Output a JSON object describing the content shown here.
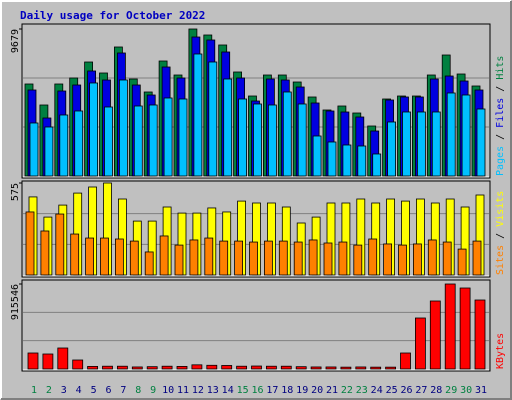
{
  "chart_data": [
    {
      "type": "bar",
      "title": "Daily usage for October 2022",
      "ylim": [
        0,
        9679
      ],
      "yticks": [
        9679
      ],
      "legend_separator": "/",
      "series": [
        {
          "name": "Hits",
          "color": "#008040",
          "values": [
            6058,
            4675,
            6058,
            6453,
            7506,
            6782,
            8494,
            6387,
            5531,
            7572,
            6650,
            9679,
            9284,
            8626,
            6848,
            5267,
            6650,
            6650,
            6189,
            5202,
            4346,
            4609,
            4148,
            3292,
            5070,
            5267,
            5267,
            6650,
            7967,
            6716,
            5926
          ]
        },
        {
          "name": "Files",
          "color": "#0000e0",
          "values": [
            5663,
            3819,
            5597,
            5992,
            6914,
            6321,
            8099,
            5992,
            5333,
            7177,
            6453,
            9152,
            8955,
            8165,
            6453,
            4938,
            6387,
            6321,
            5860,
            4807,
            4280,
            4214,
            3885,
            2963,
            5004,
            5202,
            5202,
            6387,
            6584,
            6255,
            5663
          ]
        },
        {
          "name": "Pages",
          "color": "#00c0ff",
          "values": [
            3490,
            3226,
            4017,
            4280,
            6124,
            4543,
            6321,
            4609,
            4675,
            5136,
            5070,
            8033,
            7506,
            6387,
            5070,
            4741,
            4675,
            5531,
            4741,
            2634,
            2239,
            2041,
            1975,
            1449,
            3556,
            4214,
            4214,
            4214,
            5465,
            5333,
            4412
          ]
        }
      ]
    },
    {
      "type": "bar",
      "ylim": [
        0,
        575
      ],
      "yticks": [
        575
      ],
      "legend_separator": "/",
      "series": [
        {
          "name": "Visits",
          "color": "#ffff00",
          "values": [
            488,
            362,
            437,
            512,
            550,
            575,
            475,
            337,
            337,
            425,
            387,
            387,
            419,
            394,
            462,
            450,
            450,
            425,
            325,
            362,
            450,
            450,
            475,
            450,
            475,
            462,
            475,
            450,
            475,
            425,
            500
          ]
        },
        {
          "name": "Sites",
          "color": "#ff8000",
          "values": [
            394,
            275,
            381,
            256,
            231,
            231,
            225,
            212,
            144,
            244,
            187,
            219,
            231,
            212,
            212,
            206,
            212,
            212,
            206,
            219,
            200,
            206,
            187,
            225,
            194,
            187,
            194,
            219,
            206,
            162,
            212
          ]
        }
      ]
    },
    {
      "type": "bar",
      "ylim": [
        0,
        915546
      ],
      "yticks": [
        915546
      ],
      "categories": [
        "1",
        "2",
        "3",
        "4",
        "5",
        "6",
        "7",
        "8",
        "9",
        "10",
        "11",
        "12",
        "13",
        "14",
        "15",
        "16",
        "17",
        "18",
        "19",
        "20",
        "21",
        "22",
        "23",
        "24",
        "25",
        "26",
        "27",
        "28",
        "29",
        "30",
        "31"
      ],
      "category_colors": [
        "#008040",
        "#008040",
        "#000080",
        "#000080",
        "#000080",
        "#000080",
        "#000080",
        "#008040",
        "#008040",
        "#000080",
        "#000080",
        "#000080",
        "#000080",
        "#000080",
        "#008040",
        "#008040",
        "#000080",
        "#000080",
        "#000080",
        "#000080",
        "#000080",
        "#008040",
        "#008040",
        "#000080",
        "#000080",
        "#000080",
        "#000080",
        "#000080",
        "#008040",
        "#008040",
        "#000080"
      ],
      "series": [
        {
          "name": "KBytes",
          "color": "#ff0000",
          "values": [
            172337,
            161567,
            226193,
            96940,
            28000,
            30000,
            30000,
            22000,
            25000,
            30000,
            28000,
            45000,
            40000,
            38000,
            30000,
            32000,
            30000,
            30000,
            25000,
            22000,
            22000,
            20000,
            22000,
            20000,
            20000,
            172337,
            549327,
            732437,
            915546,
            872462,
            743208
          ]
        }
      ]
    }
  ]
}
